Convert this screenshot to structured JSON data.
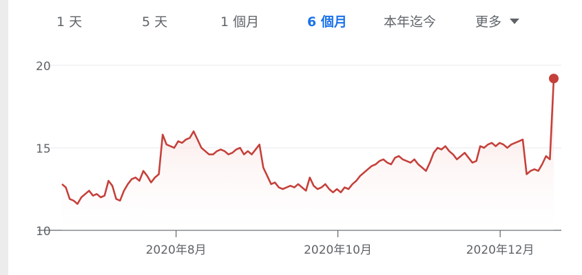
{
  "range_tabs": {
    "items": [
      {
        "label": "1 天",
        "active": false
      },
      {
        "label": "5 天",
        "active": false
      },
      {
        "label": "1 個月",
        "active": false
      },
      {
        "label": "6 個月",
        "active": true
      },
      {
        "label": "本年迄今",
        "active": false
      }
    ],
    "more_label": "更多",
    "more_icon": "caret-down-icon"
  },
  "colors": {
    "line": "#c5403a",
    "fill_top": "#f6d4d2",
    "grid": "#e8eaed",
    "axis": "#5f6368",
    "active_tab": "#1a73e8"
  },
  "chart_data": {
    "type": "area",
    "title": "",
    "xlabel": "",
    "ylabel": "",
    "ylim": [
      10,
      20
    ],
    "yticks": [
      10,
      15,
      20
    ],
    "grid": true,
    "xtick_labels": [
      "2020年8月",
      "2020年10月",
      "2020年12月"
    ],
    "series": [
      {
        "values": [
          12.8,
          12.6,
          11.9,
          11.8,
          11.6,
          12.0,
          12.2,
          12.4,
          12.1,
          12.2,
          12.0,
          12.1,
          13.0,
          12.7,
          11.9,
          11.8,
          12.4,
          12.8,
          13.1,
          13.2,
          13.0,
          13.6,
          13.3,
          12.9,
          13.2,
          13.4,
          15.8,
          15.2,
          15.1,
          15.0,
          15.4,
          15.3,
          15.5,
          15.6,
          16.0,
          15.5,
          15.0,
          14.8,
          14.6,
          14.6,
          14.8,
          14.9,
          14.8,
          14.6,
          14.7,
          14.9,
          15.0,
          14.6,
          14.8,
          14.6,
          14.9,
          15.2,
          13.8,
          13.3,
          12.8,
          12.9,
          12.6,
          12.5,
          12.6,
          12.7,
          12.6,
          12.8,
          12.6,
          12.4,
          13.2,
          12.7,
          12.5,
          12.6,
          12.8,
          12.5,
          12.3,
          12.5,
          12.3,
          12.6,
          12.5,
          12.8,
          13.0,
          13.3,
          13.5,
          13.7,
          13.9,
          14.0,
          14.2,
          14.3,
          14.1,
          14.0,
          14.4,
          14.5,
          14.3,
          14.2,
          14.1,
          14.3,
          14.0,
          13.8,
          13.6,
          14.1,
          14.7,
          15.0,
          14.9,
          15.1,
          14.8,
          14.6,
          14.3,
          14.5,
          14.7,
          14.4,
          14.1,
          14.2,
          15.1,
          15.0,
          15.2,
          15.3,
          15.1,
          15.3,
          15.2,
          15.0,
          15.2,
          15.3,
          15.4,
          15.5,
          13.4,
          13.6,
          13.7,
          13.6,
          14.0,
          14.5,
          14.3,
          19.2
        ]
      }
    ]
  }
}
